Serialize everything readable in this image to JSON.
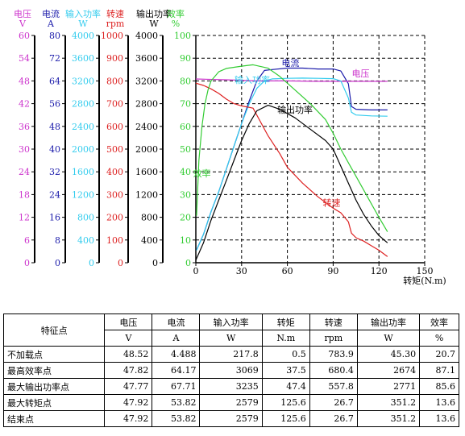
{
  "chart_data": {
    "type": "line",
    "x": {
      "label": "转矩(N.m)",
      "ticks": [
        0,
        30,
        60,
        90,
        120,
        150
      ],
      "range": [
        0,
        150
      ]
    },
    "axes": [
      {
        "key": "voltage",
        "title": "电压",
        "unit": "V",
        "color": "#cc33cc",
        "range": [
          0,
          60
        ],
        "ticks": [
          0,
          6,
          12,
          18,
          24,
          30,
          36,
          42,
          48,
          54,
          60
        ]
      },
      {
        "key": "current",
        "title": "电流",
        "unit": "A",
        "color": "#1a1aaa",
        "range": [
          0,
          80
        ],
        "ticks": [
          0,
          8,
          16,
          24,
          32,
          40,
          48,
          56,
          64,
          72,
          80
        ]
      },
      {
        "key": "input_power",
        "title": "输入功率",
        "unit": "W",
        "color": "#33ccee",
        "range": [
          0,
          4000
        ],
        "ticks": [
          0,
          400,
          800,
          1200,
          1600,
          2000,
          2400,
          2800,
          3200,
          3600,
          4000
        ]
      },
      {
        "key": "speed",
        "title": "转速",
        "unit": "rpm",
        "color": "#dd2222",
        "range": [
          0,
          1000
        ],
        "ticks": [
          0,
          100,
          200,
          300,
          400,
          500,
          600,
          700,
          800,
          900,
          1000
        ]
      },
      {
        "key": "output_power",
        "title": "输出功率",
        "unit": "W",
        "color": "#000000",
        "range": [
          0,
          4000
        ],
        "ticks": [
          0,
          400,
          800,
          1200,
          1600,
          2000,
          2400,
          2800,
          3200,
          3600,
          4000
        ]
      },
      {
        "key": "efficiency",
        "title": "效率",
        "unit": "%",
        "color": "#33cc33",
        "range": [
          0,
          100
        ],
        "ticks": [
          0,
          10,
          20,
          30,
          40,
          50,
          60,
          70,
          80,
          90,
          100
        ]
      }
    ],
    "series": [
      {
        "name": "电流",
        "axis": "current",
        "color": "#1a1aaa",
        "points": [
          [
            0.5,
            4.5
          ],
          [
            5,
            10
          ],
          [
            10,
            18
          ],
          [
            15,
            25
          ],
          [
            20,
            33
          ],
          [
            25,
            41
          ],
          [
            30,
            49
          ],
          [
            35,
            57
          ],
          [
            40,
            64
          ],
          [
            45,
            67.7
          ],
          [
            50,
            68
          ],
          [
            60,
            68.5
          ],
          [
            70,
            68.5
          ],
          [
            80,
            68.2
          ],
          [
            90,
            68.2
          ],
          [
            95,
            67.5
          ],
          [
            100,
            63
          ],
          [
            102,
            55
          ],
          [
            105,
            54
          ],
          [
            115,
            53.8
          ],
          [
            125.6,
            53.8
          ]
        ]
      },
      {
        "name": "电压",
        "axis": "voltage",
        "color": "#cc33cc",
        "points": [
          [
            0,
            48.5
          ],
          [
            20,
            48.3
          ],
          [
            40,
            48
          ],
          [
            60,
            48
          ],
          [
            80,
            47.9
          ],
          [
            100,
            47.9
          ],
          [
            125.6,
            47.9
          ]
        ]
      },
      {
        "name": "输入功率",
        "axis": "input_power",
        "color": "#33ccee",
        "points": [
          [
            0.5,
            218
          ],
          [
            5,
            500
          ],
          [
            10,
            900
          ],
          [
            15,
            1250
          ],
          [
            20,
            1650
          ],
          [
            25,
            2050
          ],
          [
            30,
            2450
          ],
          [
            35,
            2800
          ],
          [
            40,
            3069
          ],
          [
            45,
            3200
          ],
          [
            50,
            3235
          ],
          [
            60,
            3245
          ],
          [
            70,
            3250
          ],
          [
            80,
            3245
          ],
          [
            90,
            3240
          ],
          [
            95,
            3200
          ],
          [
            100,
            2900
          ],
          [
            102,
            2650
          ],
          [
            105,
            2600
          ],
          [
            115,
            2585
          ],
          [
            125.6,
            2579
          ]
        ]
      },
      {
        "name": "转速",
        "axis": "speed",
        "color": "#dd2222",
        "points": [
          [
            0,
            790
          ],
          [
            5,
            780
          ],
          [
            10,
            765
          ],
          [
            15,
            745
          ],
          [
            20,
            720
          ],
          [
            25,
            700
          ],
          [
            30,
            690
          ],
          [
            37.5,
            680
          ],
          [
            47.4,
            558
          ],
          [
            55,
            480
          ],
          [
            60,
            420
          ],
          [
            70,
            350
          ],
          [
            80,
            290
          ],
          [
            90,
            240
          ],
          [
            95,
            220
          ],
          [
            100,
            180
          ],
          [
            102,
            130
          ],
          [
            105,
            110
          ],
          [
            110,
            95
          ],
          [
            115,
            75
          ],
          [
            120,
            55
          ],
          [
            125.6,
            27
          ]
        ]
      },
      {
        "name": "输出功率",
        "axis": "output_power",
        "color": "#000000",
        "points": [
          [
            0,
            45
          ],
          [
            5,
            350
          ],
          [
            10,
            750
          ],
          [
            15,
            1100
          ],
          [
            20,
            1450
          ],
          [
            25,
            1800
          ],
          [
            30,
            2150
          ],
          [
            35,
            2450
          ],
          [
            40,
            2674
          ],
          [
            47.4,
            2771
          ],
          [
            55,
            2700
          ],
          [
            65,
            2550
          ],
          [
            75,
            2350
          ],
          [
            85,
            2150
          ],
          [
            90,
            2000
          ],
          [
            95,
            1700
          ],
          [
            100,
            1400
          ],
          [
            105,
            1100
          ],
          [
            110,
            850
          ],
          [
            115,
            650
          ],
          [
            120,
            480
          ],
          [
            125.6,
            351
          ]
        ]
      },
      {
        "name": "效率",
        "axis": "efficiency",
        "color": "#33cc33",
        "points": [
          [
            0.5,
            20.7
          ],
          [
            2,
            45
          ],
          [
            4,
            60
          ],
          [
            6,
            70
          ],
          [
            8,
            76
          ],
          [
            10,
            80
          ],
          [
            15,
            84
          ],
          [
            20,
            85.5
          ],
          [
            30,
            86.5
          ],
          [
            37.5,
            87.1
          ],
          [
            47.4,
            85.6
          ],
          [
            55,
            82
          ],
          [
            65,
            76
          ],
          [
            75,
            70
          ],
          [
            85,
            63
          ],
          [
            90,
            57
          ],
          [
            95,
            50
          ],
          [
            100,
            44
          ],
          [
            105,
            38
          ],
          [
            110,
            32
          ],
          [
            115,
            26
          ],
          [
            120,
            20
          ],
          [
            125.6,
            13.6
          ]
        ]
      }
    ],
    "labels": [
      {
        "text": "电流",
        "series": "电流",
        "at": [
          62,
          86.5
        ],
        "color": "#1a1aaa"
      },
      {
        "text": "电压",
        "series": "电压",
        "at": [
          108,
          82
        ],
        "color": "#cc33cc"
      },
      {
        "text": "输入功率",
        "series": "输入功率",
        "at": [
          37,
          79
        ],
        "color": "#33ccee"
      },
      {
        "text": "输出功率",
        "series": "输出功率",
        "at": [
          65,
          66
        ],
        "color": "#000000"
      },
      {
        "text": "效率",
        "series": "效率",
        "at": [
          4,
          38
        ],
        "color": "#33cc33"
      },
      {
        "text": "转速",
        "series": "转速",
        "at": [
          89,
          25
        ],
        "color": "#dd2222"
      }
    ],
    "grid": true
  },
  "table": {
    "row_header": "特征点",
    "columns": [
      {
        "name": "电压",
        "unit": "V"
      },
      {
        "name": "电流",
        "unit": "A"
      },
      {
        "name": "输入功率",
        "unit": "W"
      },
      {
        "name": "转矩",
        "unit": "N.m"
      },
      {
        "name": "转速",
        "unit": "rpm"
      },
      {
        "name": "输出功率",
        "unit": "W"
      },
      {
        "name": "效率",
        "unit": "%"
      }
    ],
    "rows": [
      {
        "name": "不加载点",
        "values": [
          "48.52",
          "4.488",
          "217.8",
          "0.5",
          "783.9",
          "45.30",
          "20.7"
        ]
      },
      {
        "name": "最高效率点",
        "values": [
          "47.82",
          "64.17",
          "3069",
          "37.5",
          "680.4",
          "2674",
          "87.1"
        ]
      },
      {
        "name": "最大输出功率点",
        "values": [
          "47.77",
          "67.71",
          "3235",
          "47.4",
          "557.8",
          "2771",
          "85.6"
        ]
      },
      {
        "name": "最大转矩点",
        "values": [
          "47.92",
          "53.82",
          "2579",
          "125.6",
          "26.7",
          "351.2",
          "13.6"
        ]
      },
      {
        "name": "结束点",
        "values": [
          "47.92",
          "53.82",
          "2579",
          "125.6",
          "26.7",
          "351.2",
          "13.6"
        ]
      }
    ]
  }
}
